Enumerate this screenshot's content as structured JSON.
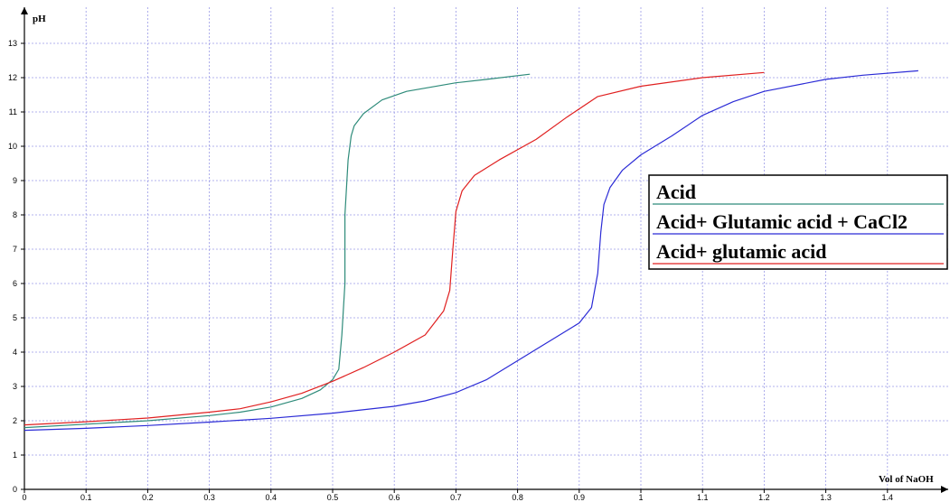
{
  "chart_data": {
    "type": "line",
    "xlabel": "Vol of NaOH",
    "ylabel": "pH",
    "xlim": [
      0,
      1.5
    ],
    "ylim": [
      0,
      14
    ],
    "xticks": [
      "0",
      "0.1",
      "0.2",
      "0.3",
      "0.4",
      "0.5",
      "0.6",
      "0.7",
      "0.8",
      "0.9",
      "1",
      "1.1",
      "1.2",
      "1.3",
      "1.4"
    ],
    "yticks": [
      "0",
      "1",
      "2",
      "3",
      "4",
      "5",
      "6",
      "7",
      "8",
      "9",
      "10",
      "11",
      "12",
      "13"
    ],
    "grid": true,
    "legend_position": "right",
    "series": [
      {
        "name": "Acid",
        "color": "#2e8b7a",
        "points": [
          [
            0,
            1.8
          ],
          [
            0.1,
            1.9
          ],
          [
            0.2,
            2.0
          ],
          [
            0.3,
            2.15
          ],
          [
            0.35,
            2.25
          ],
          [
            0.4,
            2.4
          ],
          [
            0.45,
            2.65
          ],
          [
            0.48,
            2.9
          ],
          [
            0.5,
            3.2
          ],
          [
            0.51,
            3.5
          ],
          [
            0.515,
            4.5
          ],
          [
            0.52,
            6.0
          ],
          [
            0.52,
            8.0
          ],
          [
            0.525,
            9.6
          ],
          [
            0.53,
            10.3
          ],
          [
            0.535,
            10.6
          ],
          [
            0.55,
            10.95
          ],
          [
            0.58,
            11.35
          ],
          [
            0.62,
            11.6
          ],
          [
            0.7,
            11.85
          ],
          [
            0.75,
            11.95
          ],
          [
            0.82,
            12.1
          ]
        ]
      },
      {
        "name": "Acid+ Glutamic acid + CaCl2",
        "color": "#2b2bd6",
        "points": [
          [
            0,
            1.72
          ],
          [
            0.1,
            1.78
          ],
          [
            0.2,
            1.86
          ],
          [
            0.3,
            1.96
          ],
          [
            0.4,
            2.07
          ],
          [
            0.5,
            2.22
          ],
          [
            0.6,
            2.42
          ],
          [
            0.65,
            2.58
          ],
          [
            0.7,
            2.82
          ],
          [
            0.75,
            3.2
          ],
          [
            0.8,
            3.75
          ],
          [
            0.85,
            4.3
          ],
          [
            0.9,
            4.85
          ],
          [
            0.92,
            5.3
          ],
          [
            0.93,
            6.3
          ],
          [
            0.935,
            7.5
          ],
          [
            0.94,
            8.3
          ],
          [
            0.95,
            8.8
          ],
          [
            0.97,
            9.3
          ],
          [
            1.0,
            9.75
          ],
          [
            1.05,
            10.3
          ],
          [
            1.1,
            10.9
          ],
          [
            1.15,
            11.3
          ],
          [
            1.2,
            11.6
          ],
          [
            1.3,
            11.95
          ],
          [
            1.36,
            12.07
          ],
          [
            1.45,
            12.2
          ]
        ]
      },
      {
        "name": "Acid+ glutamic acid",
        "color": "#e02020",
        "points": [
          [
            0,
            1.88
          ],
          [
            0.1,
            1.97
          ],
          [
            0.2,
            2.08
          ],
          [
            0.3,
            2.25
          ],
          [
            0.35,
            2.35
          ],
          [
            0.4,
            2.55
          ],
          [
            0.45,
            2.8
          ],
          [
            0.5,
            3.15
          ],
          [
            0.55,
            3.55
          ],
          [
            0.6,
            4.0
          ],
          [
            0.65,
            4.5
          ],
          [
            0.68,
            5.2
          ],
          [
            0.69,
            5.8
          ],
          [
            0.695,
            7.0
          ],
          [
            0.7,
            8.1
          ],
          [
            0.71,
            8.7
          ],
          [
            0.73,
            9.15
          ],
          [
            0.77,
            9.6
          ],
          [
            0.83,
            10.2
          ],
          [
            0.88,
            10.85
          ],
          [
            0.93,
            11.45
          ],
          [
            1.0,
            11.75
          ],
          [
            1.1,
            12.0
          ],
          [
            1.2,
            12.15
          ]
        ]
      }
    ]
  }
}
